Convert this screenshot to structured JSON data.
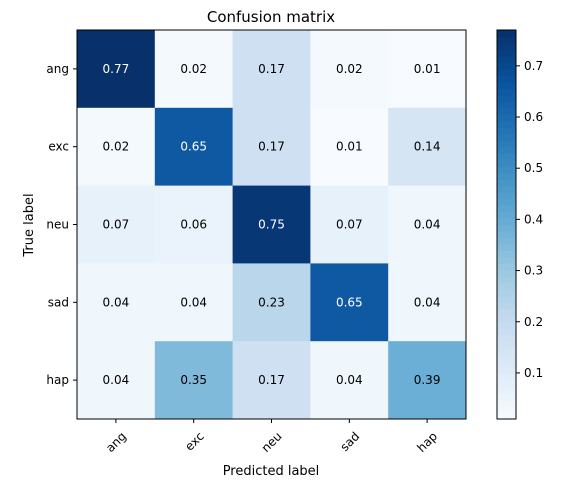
{
  "chart_data": {
    "type": "heatmap",
    "title": "Confusion matrix",
    "xlabel": "Predicted label",
    "ylabel": "True label",
    "x_categories": [
      "ang",
      "exc",
      "neu",
      "sad",
      "hap"
    ],
    "y_categories": [
      "ang",
      "exc",
      "neu",
      "sad",
      "hap"
    ],
    "values": [
      [
        0.77,
        0.02,
        0.17,
        0.02,
        0.01
      ],
      [
        0.02,
        0.65,
        0.17,
        0.01,
        0.14
      ],
      [
        0.07,
        0.06,
        0.75,
        0.07,
        0.04
      ],
      [
        0.04,
        0.04,
        0.23,
        0.65,
        0.04
      ],
      [
        0.04,
        0.35,
        0.17,
        0.04,
        0.39
      ]
    ],
    "colormap": "Blues",
    "colorbar": {
      "min": 0.01,
      "max": 0.77,
      "ticks": [
        0.1,
        0.2,
        0.3,
        0.4,
        0.5,
        0.6,
        0.7
      ],
      "tick_labels": [
        "0.1",
        "0.2",
        "0.3",
        "0.4",
        "0.5",
        "0.6",
        "0.7"
      ]
    },
    "grid": false
  },
  "colors": {
    "text_dark": "#000000",
    "text_light": "#ffffff"
  }
}
